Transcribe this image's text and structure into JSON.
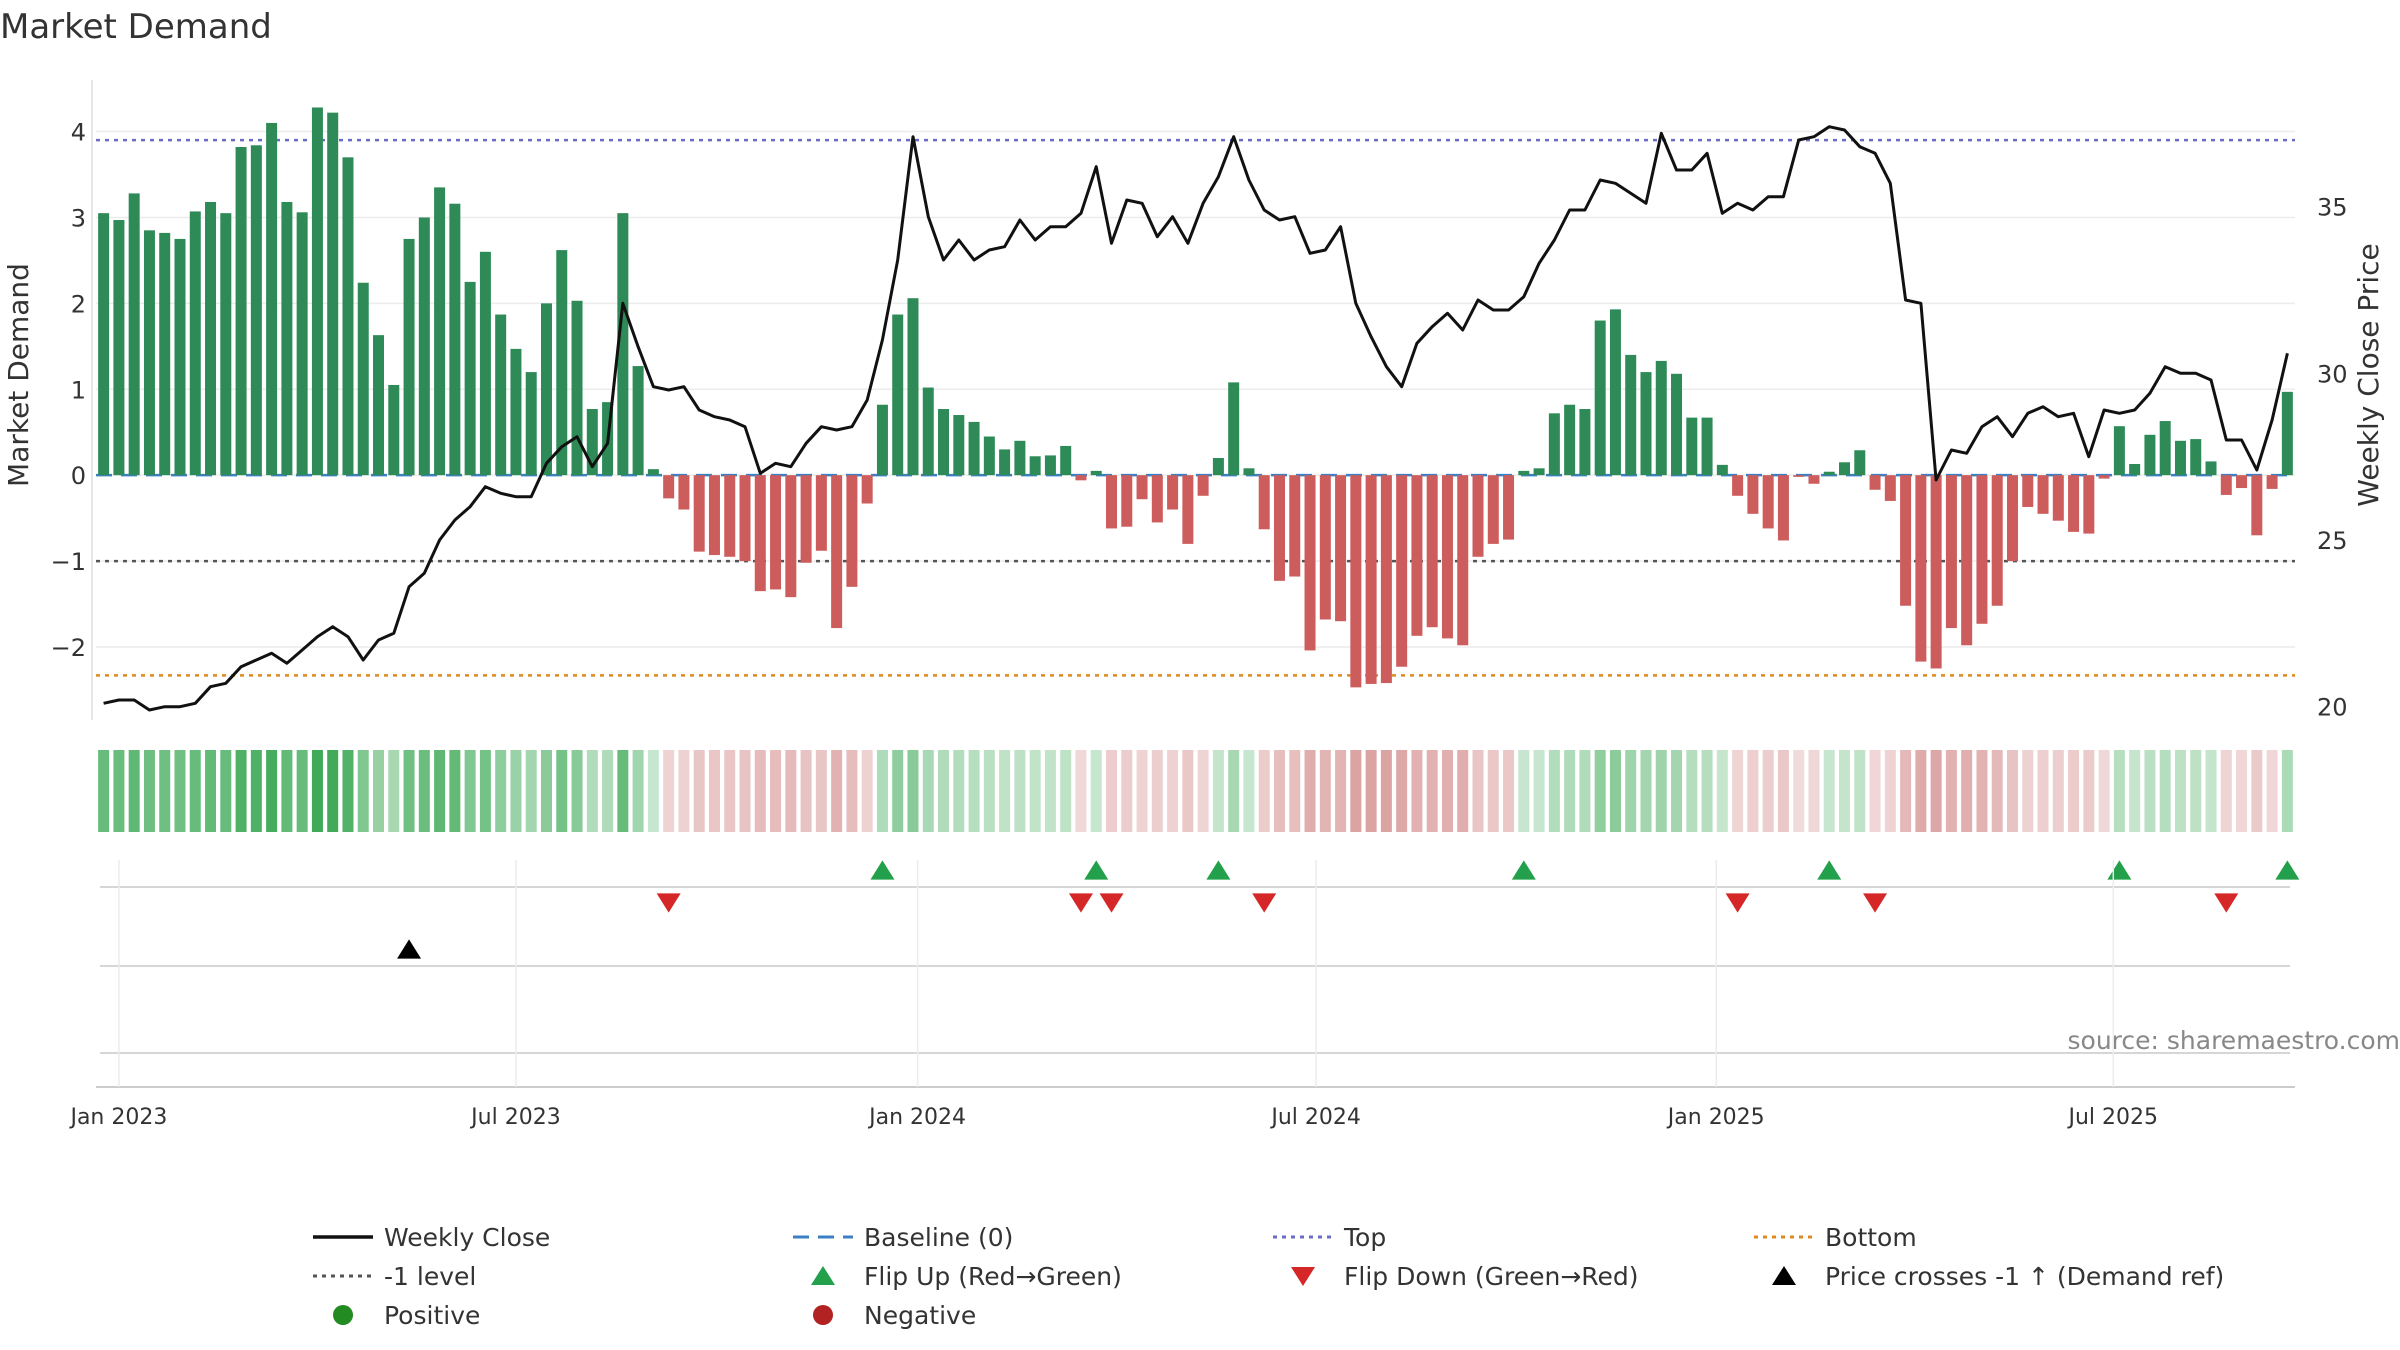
{
  "chart_data": {
    "type": "bar",
    "title": "Market Demand",
    "ylabel_left": "Market Demand",
    "ylabel_right": "Weekly Close Price",
    "source": "source: sharemaestro.com",
    "ylim_left": [
      -2.85,
      4.6
    ],
    "ylim_right": [
      19.6,
      38.8
    ],
    "yticks_left": [
      4,
      3,
      2,
      1,
      0,
      -1,
      -2
    ],
    "ytick_labels_left": [
      "4",
      "3",
      "2",
      "1",
      "0",
      "−1",
      "−2"
    ],
    "yticks_right": [
      35,
      30,
      25,
      20
    ],
    "ytick_labels_right": [
      "35",
      "30",
      "25",
      "20"
    ],
    "date_start": "2022-12-26",
    "weeks_total": 146,
    "xticks": [
      {
        "label": "Jan 2023",
        "week": 1
      },
      {
        "label": "Jul 2023",
        "week": 27
      },
      {
        "label": "Jan 2024",
        "week": 53.3
      },
      {
        "label": "Jul 2024",
        "week": 79.4
      },
      {
        "label": "Jan 2025",
        "week": 105.6
      },
      {
        "label": "Jul 2025",
        "week": 131.6
      }
    ],
    "reference_lines": {
      "top": 3.9,
      "bottom": -2.33,
      "minus_one": -1,
      "baseline": 0
    },
    "demand": [
      3.05,
      2.97,
      3.28,
      2.85,
      2.82,
      2.75,
      3.07,
      3.18,
      3.05,
      3.82,
      3.84,
      4.1,
      3.18,
      3.06,
      4.28,
      4.22,
      3.7,
      2.24,
      1.63,
      1.05,
      2.75,
      3.0,
      3.35,
      3.16,
      2.25,
      2.6,
      1.87,
      1.47,
      1.2,
      2.0,
      2.62,
      2.03,
      0.77,
      0.85,
      3.05,
      1.27,
      0.07,
      -0.27,
      -0.4,
      -0.89,
      -0.93,
      -0.95,
      -1.0,
      -1.35,
      -1.33,
      -1.42,
      -1.02,
      -0.88,
      -1.78,
      -1.3,
      -0.33,
      0.82,
      1.87,
      2.06,
      1.02,
      0.77,
      0.7,
      0.62,
      0.45,
      0.3,
      0.4,
      0.22,
      0.23,
      0.34,
      -0.06,
      0.05,
      -0.62,
      -0.6,
      -0.28,
      -0.55,
      -0.4,
      -0.8,
      -0.24,
      0.2,
      1.08,
      0.08,
      -0.63,
      -1.23,
      -1.18,
      -2.04,
      -1.68,
      -1.7,
      -2.47,
      -2.43,
      -2.42,
      -2.23,
      -1.87,
      -1.77,
      -1.9,
      -1.98,
      -0.95,
      -0.8,
      -0.75,
      0.05,
      0.08,
      0.72,
      0.82,
      0.77,
      1.8,
      1.93,
      1.4,
      1.2,
      1.33,
      1.18,
      0.67,
      0.67,
      0.12,
      -0.24,
      -0.45,
      -0.62,
      -0.76,
      -0.02,
      -0.1,
      0.04,
      0.15,
      0.29,
      -0.17,
      -0.3,
      -1.52,
      -2.17,
      -2.25,
      -1.78,
      -1.98,
      -1.73,
      -1.52,
      -1.0,
      -0.37,
      -0.45,
      -0.53,
      -0.66,
      -0.68,
      -0.04,
      0.57,
      0.13,
      0.47,
      0.63,
      0.4,
      0.42,
      0.16,
      -0.23,
      -0.15,
      -0.7,
      -0.16,
      0.97
    ],
    "close": [
      20.1,
      20.2,
      20.2,
      19.9,
      20.0,
      20.0,
      20.1,
      20.6,
      20.7,
      21.2,
      21.4,
      21.6,
      21.3,
      21.7,
      22.1,
      22.4,
      22.1,
      21.4,
      22.0,
      22.2,
      23.6,
      24.0,
      25.0,
      25.6,
      26.0,
      26.6,
      26.4,
      26.3,
      26.3,
      27.3,
      27.8,
      28.1,
      27.2,
      27.9,
      32.1,
      30.8,
      29.6,
      29.5,
      29.6,
      28.9,
      28.7,
      28.6,
      28.4,
      27.0,
      27.3,
      27.2,
      27.9,
      28.4,
      28.3,
      28.4,
      29.2,
      31.0,
      33.4,
      37.1,
      34.7,
      33.4,
      34.0,
      33.4,
      33.7,
      33.8,
      34.6,
      34.0,
      34.4,
      34.4,
      34.8,
      36.2,
      33.9,
      35.2,
      35.1,
      34.1,
      34.7,
      33.9,
      35.1,
      35.9,
      37.1,
      35.8,
      34.9,
      34.6,
      34.7,
      33.6,
      33.7,
      34.4,
      32.1,
      31.1,
      30.2,
      29.6,
      30.9,
      31.4,
      31.8,
      31.3,
      32.2,
      31.9,
      31.9,
      32.3,
      33.3,
      34.0,
      34.9,
      34.9,
      35.8,
      35.7,
      35.4,
      35.1,
      37.2,
      36.1,
      36.1,
      36.6,
      34.8,
      35.1,
      34.9,
      35.3,
      35.3,
      37.0,
      37.1,
      37.4,
      37.3,
      36.8,
      36.6,
      35.7,
      32.2,
      32.1,
      26.8,
      27.7,
      27.6,
      28.4,
      28.7,
      28.1,
      28.8,
      29.0,
      28.7,
      28.8,
      27.5,
      28.9,
      28.8,
      28.9,
      29.4,
      30.2,
      30.0,
      30.0,
      29.8,
      28.0,
      28.0,
      27.1,
      28.6,
      30.6
    ],
    "flip_up_weeks": [
      51,
      65,
      73,
      93,
      113,
      132,
      143
    ],
    "flip_down_weeks": [
      37,
      64,
      66,
      76,
      107,
      116,
      139
    ],
    "price_cross_weeks": [
      20
    ],
    "legend": [
      {
        "label": "Weekly Close",
        "symbol": "line",
        "color": "#111111"
      },
      {
        "label": "Baseline (0)",
        "symbol": "dash",
        "color": "#3b7fc4"
      },
      {
        "label": "Top",
        "symbol": "dot",
        "color": "#6b6bc8"
      },
      {
        "label": "Bottom",
        "symbol": "dot",
        "color": "#e08a1e"
      },
      {
        "label": "-1 level",
        "symbol": "dot",
        "color": "#555555"
      },
      {
        "label": "Flip Up (Red→Green)",
        "symbol": "tri-up",
        "color": "#22a04b"
      },
      {
        "label": "Flip Down (Green→Red)",
        "symbol": "tri-down",
        "color": "#d62728"
      },
      {
        "label": "Price crosses -1 ↑ (Demand ref)",
        "symbol": "tri-up",
        "color": "#000000"
      },
      {
        "label": "Positive",
        "symbol": "circle",
        "color": "#228b22"
      },
      {
        "label": "Negative",
        "symbol": "circle",
        "color": "#b22222"
      }
    ],
    "colors": {
      "positive": "#2e8b57",
      "negative": "#cd5c5c",
      "flip_up": "#22a04b",
      "flip_down": "#d62728",
      "cross": "#000000",
      "price": "#111111"
    }
  }
}
